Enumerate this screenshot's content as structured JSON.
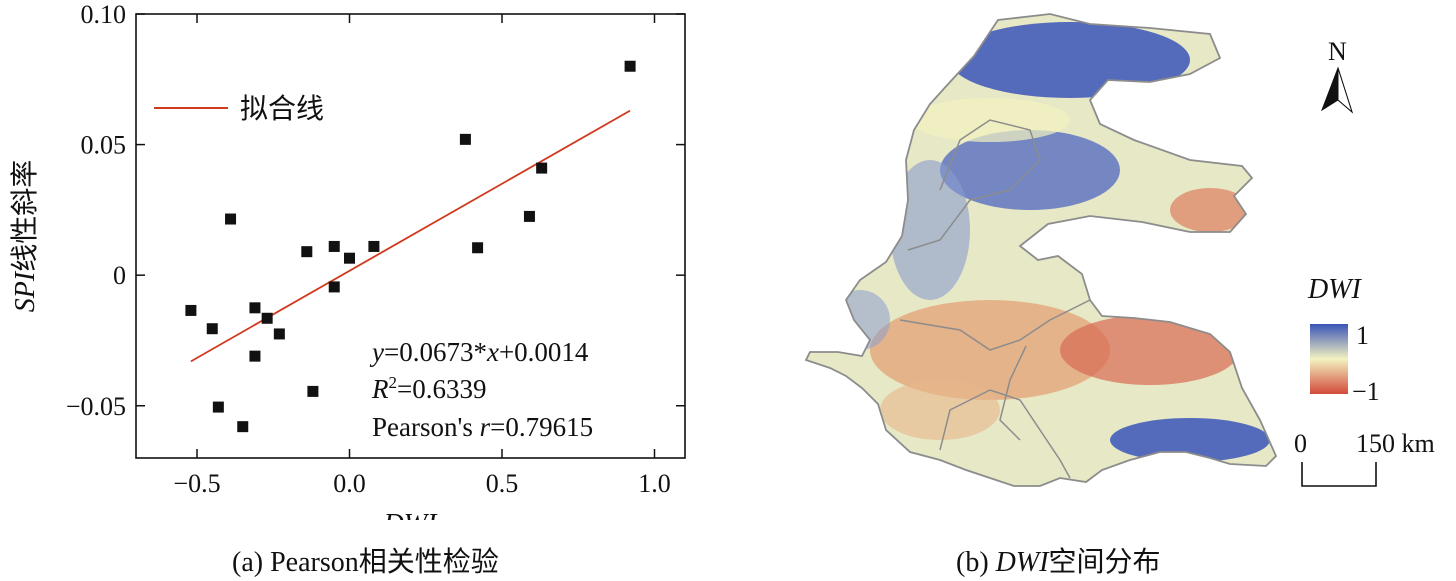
{
  "panel_a": {
    "caption": "(a) Pearson相关性检验",
    "legend_label": "拟合线",
    "equation": {
      "y": "y",
      "eq_rest": "=0.0673*",
      "x": "x",
      "tail": "+0.0014"
    },
    "r_squared": {
      "r": "R",
      "sup": "2",
      "value": "=0.6339"
    },
    "pearson": {
      "prefix": "Pearson's ",
      "r": "r",
      "value": "=0.79615"
    }
  },
  "panel_b": {
    "caption_prefix": "(b) ",
    "caption_italic": "DWI",
    "caption_suffix": "空间分布",
    "north_label": "N",
    "colorbar_title": "DWI",
    "colorbar_max_label": "1",
    "colorbar_min_label": "−1",
    "scale_zero": "0",
    "scale_end": "150 km",
    "colors": {
      "high": "#3a55b8",
      "mid": "#f3f2c0",
      "low": "#d24a3a",
      "boundary": "#8c8c8c"
    }
  },
  "chart_data": {
    "type": "scatter",
    "xlabel": "DWI",
    "ylabel": "SPI线性斜率",
    "ylabel_italic_part": "SPI",
    "ylabel_plain_part": "线性斜率",
    "xlim": [
      -0.7,
      1.1
    ],
    "ylim": [
      -0.07,
      0.1
    ],
    "x_ticks": [
      -0.5,
      0.0,
      0.5,
      1.0
    ],
    "x_tick_labels": [
      "−0.5",
      "0.0",
      "0.5",
      "1.0"
    ],
    "y_ticks": [
      -0.05,
      0,
      0.05,
      0.1
    ],
    "y_tick_labels": [
      "−0.05",
      "0",
      "0.05",
      "0.10"
    ],
    "series": [
      {
        "type": "scatter",
        "color": "#111111",
        "points": [
          [
            -0.52,
            -0.0135
          ],
          [
            -0.45,
            -0.0205
          ],
          [
            -0.43,
            -0.0505
          ],
          [
            -0.39,
            0.0215
          ],
          [
            -0.35,
            -0.058
          ],
          [
            -0.31,
            -0.0125
          ],
          [
            -0.31,
            -0.031
          ],
          [
            -0.27,
            -0.0165
          ],
          [
            -0.23,
            -0.0225
          ],
          [
            -0.14,
            0.009
          ],
          [
            -0.12,
            -0.0445
          ],
          [
            -0.05,
            0.011
          ],
          [
            -0.05,
            -0.0045
          ],
          [
            0.0,
            0.0065
          ],
          [
            0.08,
            0.011
          ],
          [
            0.38,
            0.052
          ],
          [
            0.42,
            0.0105
          ],
          [
            0.59,
            0.0225
          ],
          [
            0.63,
            0.041
          ],
          [
            0.92,
            0.08
          ]
        ]
      },
      {
        "name": "拟合线",
        "type": "line",
        "color": "#d03a1e",
        "points": [
          [
            -0.52,
            -0.033
          ],
          [
            0.92,
            0.063
          ]
        ]
      }
    ],
    "legend_position": "top-left"
  }
}
